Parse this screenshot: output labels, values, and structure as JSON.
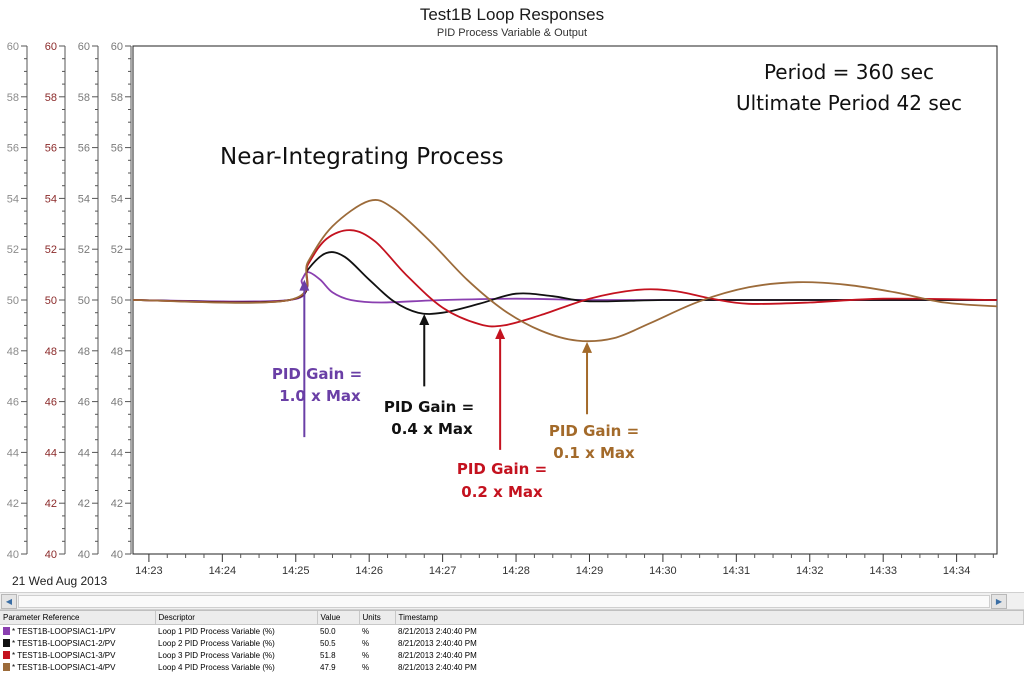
{
  "title": "Test1B Loop Responses",
  "subtitle": "PID Process Variable & Output",
  "date_label": "21 Wed Aug 2013",
  "annotations": {
    "process": "Near-Integrating Process",
    "period": "Period = 360 sec",
    "ultimate": "Ultimate Period 42 sec"
  },
  "gain_labels": [
    {
      "line1": "PID Gain =",
      "line2": "1.0 x Max",
      "color": "#6a3fa6"
    },
    {
      "line1": "PID Gain =",
      "line2": "0.4 x Max",
      "color": "#111111"
    },
    {
      "line1": "PID Gain =",
      "line2": "0.2 x Max",
      "color": "#c4121f"
    },
    {
      "line1": "PID Gain =",
      "line2": "0.1 x Max",
      "color": "#a36a2a"
    }
  ],
  "axes_colors": [
    "#8c8c8c",
    "#8b2a2a",
    "#7a7a7a",
    "#7a7a7a"
  ],
  "chart_data": {
    "type": "line",
    "x_ticks": [
      "14:23",
      "14:24",
      "14:25",
      "14:26",
      "14:27",
      "14:28",
      "14:29",
      "14:30",
      "14:31",
      "14:32",
      "14:33",
      "14:34"
    ],
    "y_ticks": [
      "60",
      "58",
      "56",
      "54",
      "52",
      "50",
      "48",
      "46",
      "44",
      "42",
      "40"
    ],
    "ylim": [
      40,
      60
    ],
    "xlim": [
      "14:22:47",
      "14:34:33"
    ],
    "grid": false,
    "series": [
      {
        "name": "Loop 1 PID Process Variable (%)",
        "color": "#8a3fb0",
        "points": [
          [
            "14:22:47",
            50.0
          ],
          [
            "14:24:55",
            50.0
          ],
          [
            "14:25:05",
            50.8
          ],
          [
            "14:25:10",
            51.1
          ],
          [
            "14:25:20",
            50.8
          ],
          [
            "14:25:30",
            50.3
          ],
          [
            "14:25:45",
            50.0
          ],
          [
            "14:26:10",
            49.9
          ],
          [
            "14:27:00",
            50.0
          ],
          [
            "14:28:00",
            50.05
          ],
          [
            "14:29:00",
            50.0
          ],
          [
            "14:30:00",
            50.0
          ],
          [
            "14:31:00",
            50.0
          ],
          [
            "14:32:00",
            50.0
          ],
          [
            "14:33:00",
            50.0
          ],
          [
            "14:34:33",
            50.0
          ]
        ]
      },
      {
        "name": "Loop 2 PID Process Variable (%)",
        "color": "#111111",
        "points": [
          [
            "14:22:47",
            50.0
          ],
          [
            "14:24:55",
            50.0
          ],
          [
            "14:25:10",
            51.2
          ],
          [
            "14:25:25",
            51.85
          ],
          [
            "14:25:40",
            51.7
          ],
          [
            "14:26:00",
            50.8
          ],
          [
            "14:26:20",
            49.95
          ],
          [
            "14:26:40",
            49.5
          ],
          [
            "14:27:00",
            49.5
          ],
          [
            "14:27:30",
            49.85
          ],
          [
            "14:28:00",
            50.25
          ],
          [
            "14:28:30",
            50.15
          ],
          [
            "14:29:00",
            49.95
          ],
          [
            "14:30:00",
            50.0
          ],
          [
            "14:31:00",
            50.0
          ],
          [
            "14:32:00",
            50.0
          ],
          [
            "14:33:00",
            50.0
          ],
          [
            "14:34:33",
            50.0
          ]
        ]
      },
      {
        "name": "Loop 3 PID Process Variable (%)",
        "color": "#c4121f",
        "points": [
          [
            "14:22:47",
            50.0
          ],
          [
            "14:24:55",
            50.0
          ],
          [
            "14:25:10",
            51.4
          ],
          [
            "14:25:25",
            52.4
          ],
          [
            "14:25:45",
            52.75
          ],
          [
            "14:26:05",
            52.3
          ],
          [
            "14:26:30",
            51.0
          ],
          [
            "14:27:00",
            49.7
          ],
          [
            "14:27:30",
            49.05
          ],
          [
            "14:27:50",
            49.0
          ],
          [
            "14:28:20",
            49.4
          ],
          [
            "14:29:00",
            50.05
          ],
          [
            "14:29:40",
            50.4
          ],
          [
            "14:30:10",
            50.35
          ],
          [
            "14:30:40",
            50.05
          ],
          [
            "14:31:10",
            49.85
          ],
          [
            "14:32:00",
            49.9
          ],
          [
            "14:33:00",
            50.05
          ],
          [
            "14:34:33",
            50.0
          ]
        ]
      },
      {
        "name": "Loop 4 PID Process Variable (%)",
        "color": "#9c6b3a",
        "points": [
          [
            "14:22:47",
            50.0
          ],
          [
            "14:24:55",
            50.0
          ],
          [
            "14:25:10",
            51.5
          ],
          [
            "14:25:30",
            52.9
          ],
          [
            "14:26:00",
            53.9
          ],
          [
            "14:26:20",
            53.6
          ],
          [
            "14:26:50",
            52.3
          ],
          [
            "14:27:20",
            50.8
          ],
          [
            "14:27:50",
            49.6
          ],
          [
            "14:28:20",
            48.8
          ],
          [
            "14:28:50",
            48.4
          ],
          [
            "14:29:20",
            48.5
          ],
          [
            "14:29:50",
            49.1
          ],
          [
            "14:30:30",
            49.95
          ],
          [
            "14:31:10",
            50.5
          ],
          [
            "14:31:50",
            50.7
          ],
          [
            "14:32:30",
            50.6
          ],
          [
            "14:33:10",
            50.3
          ],
          [
            "14:33:50",
            49.9
          ],
          [
            "14:34:33",
            49.75
          ]
        ]
      }
    ]
  },
  "table": {
    "headers": [
      "Parameter Reference",
      "Descriptor",
      "Value",
      "Units",
      "Timestamp"
    ],
    "rows": [
      {
        "ref": "* TEST1B-LOOPSIAC1-1/PV",
        "desc": "Loop 1 PID Process Variable (%)",
        "value": "50.0",
        "units": "%",
        "ts": "8/21/2013 2:40:40 PM",
        "color": "#8a3fb0"
      },
      {
        "ref": "* TEST1B-LOOPSIAC1-2/PV",
        "desc": "Loop 2 PID Process Variable (%)",
        "value": "50.5",
        "units": "%",
        "ts": "8/21/2013 2:40:40 PM",
        "color": "#111111"
      },
      {
        "ref": "* TEST1B-LOOPSIAC1-3/PV",
        "desc": "Loop 3 PID Process Variable (%)",
        "value": "51.8",
        "units": "%",
        "ts": "8/21/2013 2:40:40 PM",
        "color": "#c4121f"
      },
      {
        "ref": "* TEST1B-LOOPSIAC1-4/PV",
        "desc": "Loop 4 PID Process Variable (%)",
        "value": "47.9",
        "units": "%",
        "ts": "8/21/2013 2:40:40 PM",
        "color": "#9c6b3a"
      }
    ]
  }
}
